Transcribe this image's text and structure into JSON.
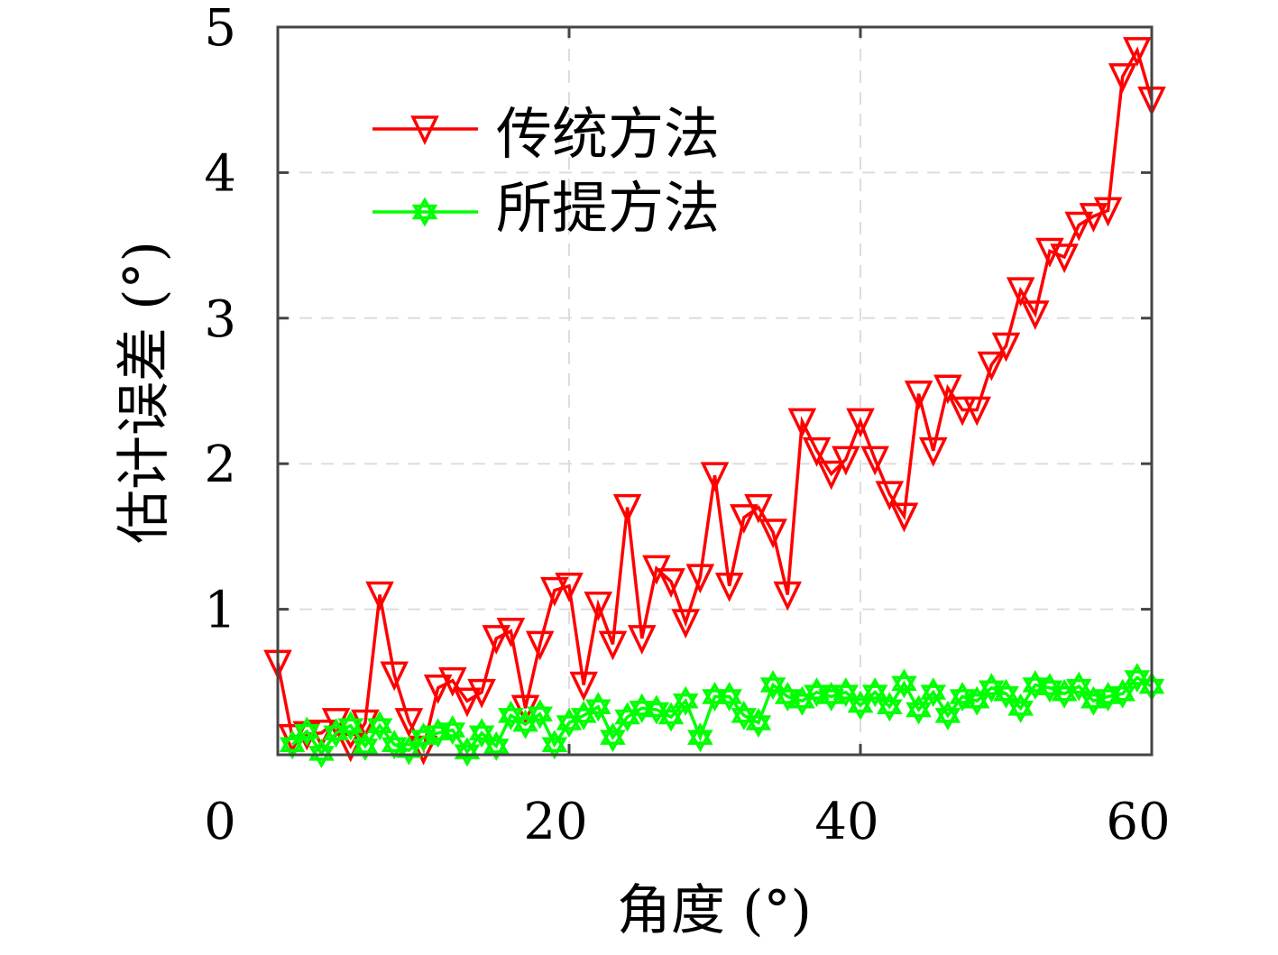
{
  "chart_data": {
    "type": "line",
    "title": "",
    "xlabel": "角度 (°)",
    "ylabel": "估计误差 (°)",
    "xlim": [
      0,
      60
    ],
    "ylim": [
      0,
      5
    ],
    "xticks": [
      "0",
      "20",
      "40",
      "60"
    ],
    "xtick_values": [
      0,
      20,
      40,
      60
    ],
    "yticks": [
      "1",
      "2",
      "3",
      "4",
      "5"
    ],
    "ytick_values": [
      1,
      2,
      3,
      4,
      5
    ],
    "grid": true,
    "legend_position": "top-left",
    "series": [
      {
        "name": "传统方法",
        "color": "#ff0000",
        "marker": "triangle-down",
        "x": [
          0,
          1,
          2,
          3,
          4,
          5,
          6,
          7,
          8,
          9,
          10,
          11,
          12,
          13,
          14,
          15,
          16,
          17,
          18,
          19,
          20,
          21,
          22,
          23,
          24,
          25,
          26,
          27,
          28,
          29,
          30,
          31,
          32,
          33,
          34,
          35,
          36,
          37,
          38,
          39,
          40,
          41,
          42,
          43,
          44,
          45,
          46,
          47,
          48,
          49,
          50,
          51,
          52,
          53,
          54,
          55,
          56,
          57,
          58,
          59,
          60
        ],
        "values": [
          0.63,
          0.12,
          0.14,
          0.15,
          0.23,
          0.06,
          0.22,
          1.1,
          0.55,
          0.23,
          0.04,
          0.46,
          0.51,
          0.37,
          0.43,
          0.8,
          0.85,
          0.32,
          0.76,
          1.13,
          1.16,
          0.48,
          1.03,
          0.76,
          1.7,
          0.8,
          1.28,
          1.19,
          0.91,
          1.22,
          1.92,
          1.16,
          1.63,
          1.7,
          1.53,
          1.1,
          2.29,
          2.09,
          1.93,
          2.03,
          2.29,
          2.03,
          1.79,
          1.64,
          2.48,
          2.09,
          2.52,
          2.37,
          2.37,
          2.68,
          2.81,
          3.19,
          3.03,
          3.46,
          3.42,
          3.64,
          3.7,
          3.74,
          4.66,
          4.84,
          4.5
        ]
      },
      {
        "name": "所提方法",
        "color": "#00ff00",
        "marker": "hexagram",
        "x": [
          1,
          2,
          3,
          4,
          5,
          6,
          7,
          8,
          9,
          10,
          11,
          12,
          13,
          14,
          15,
          16,
          17,
          18,
          19,
          20,
          21,
          22,
          23,
          24,
          25,
          26,
          27,
          28,
          29,
          30,
          31,
          32,
          33,
          34,
          35,
          36,
          37,
          38,
          39,
          40,
          41,
          42,
          43,
          44,
          45,
          46,
          47,
          48,
          49,
          50,
          51,
          52,
          53,
          54,
          55,
          56,
          57,
          58,
          59,
          60
        ],
        "values": [
          0.07,
          0.16,
          0.01,
          0.15,
          0.2,
          0.06,
          0.2,
          0.07,
          0.03,
          0.12,
          0.15,
          0.17,
          0.02,
          0.15,
          0.06,
          0.27,
          0.21,
          0.28,
          0.07,
          0.22,
          0.27,
          0.33,
          0.12,
          0.26,
          0.32,
          0.31,
          0.26,
          0.37,
          0.12,
          0.4,
          0.4,
          0.27,
          0.22,
          0.48,
          0.4,
          0.37,
          0.43,
          0.4,
          0.43,
          0.34,
          0.43,
          0.33,
          0.49,
          0.31,
          0.43,
          0.27,
          0.4,
          0.37,
          0.46,
          0.42,
          0.32,
          0.48,
          0.46,
          0.42,
          0.47,
          0.37,
          0.4,
          0.42,
          0.53,
          0.47
        ]
      }
    ]
  }
}
